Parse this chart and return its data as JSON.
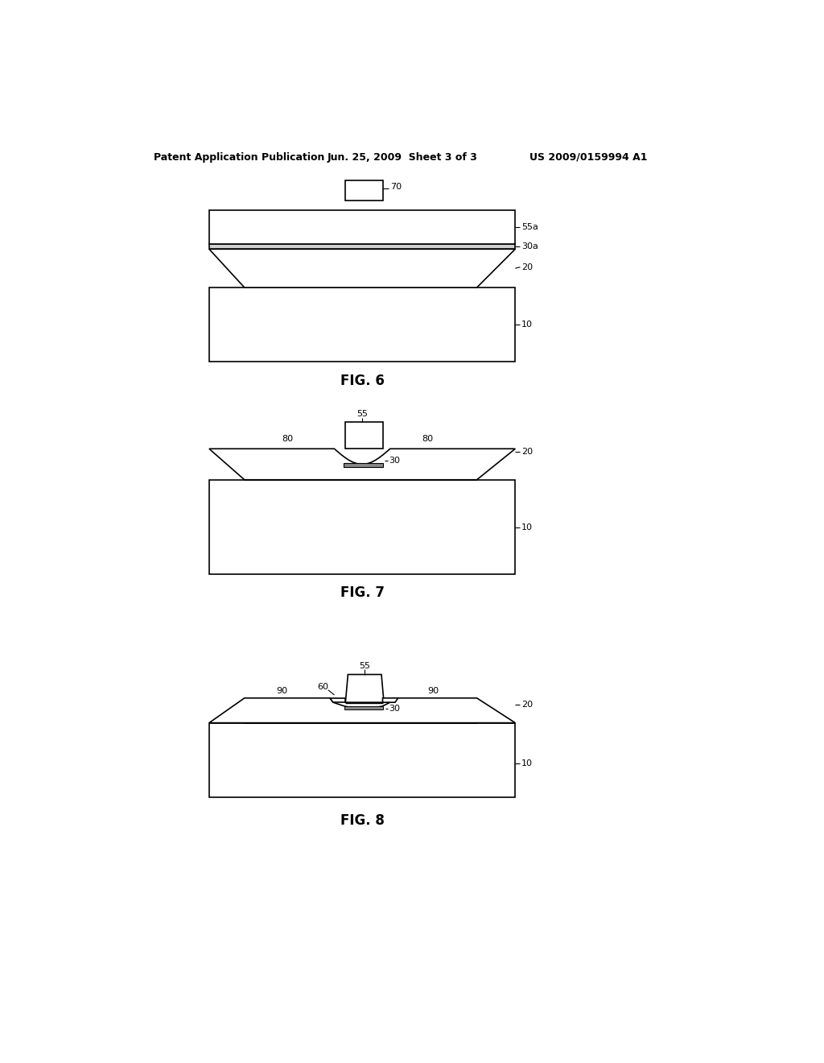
{
  "background_color": "#ffffff",
  "header_left": "Patent Application Publication",
  "header_center": "Jun. 25, 2009  Sheet 3 of 3",
  "header_right": "US 2009/0159994 A1",
  "fig6_caption": "FIG. 6",
  "fig7_caption": "FIG. 7",
  "fig8_caption": "FIG. 8",
  "line_color": "#000000",
  "line_width": 1.2
}
